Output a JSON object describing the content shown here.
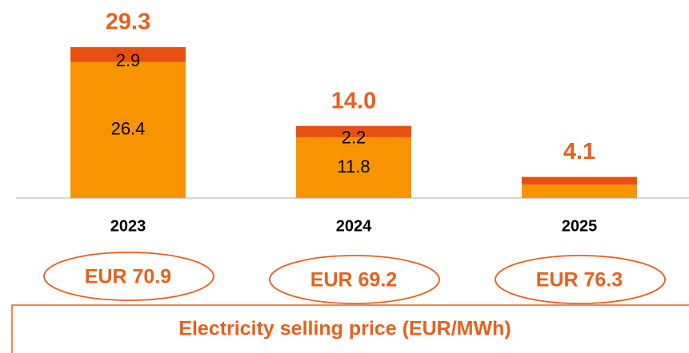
{
  "chart_data": {
    "type": "stacked_bar",
    "categories": [
      "2023",
      "2024",
      "2025"
    ],
    "series": [
      {
        "color": "#f79400",
        "values": [
          26.4,
          11.8,
          2.6
        ],
        "value_labels": [
          "26.4",
          "11.8",
          null
        ]
      },
      {
        "color": "#e8500f",
        "values": [
          2.9,
          2.2,
          1.5
        ],
        "value_labels": [
          "2.9",
          "2.2",
          null
        ]
      }
    ],
    "totals": [
      {
        "value": 29.3,
        "label": "29.3"
      },
      {
        "value": 14.0,
        "label": "14.0"
      },
      {
        "value": 4.1,
        "label": "4.1"
      }
    ],
    "ylim": [
      0,
      30
    ],
    "prices": [
      "EUR 70.9",
      "EUR 69.2",
      "EUR 76.3"
    ],
    "caption": "Electricity selling price (EUR/MWh)"
  }
}
